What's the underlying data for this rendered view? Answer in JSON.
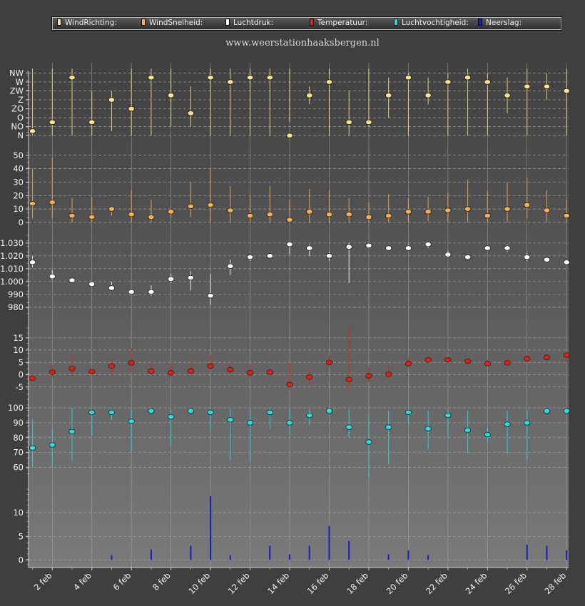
{
  "site_url": "www.weerstationhaaksbergen.nl",
  "colors": {
    "wind_direction": "#ffe38a",
    "wind_speed": "#f8b04c",
    "pressure": "#ffffff",
    "temperature": "#e81e10",
    "humidity": "#26e0e0",
    "precipitation": "#1a1ad0",
    "grid": "#a8a8a8"
  },
  "legend": [
    {
      "label": "WindRichting:",
      "color": "#ffe38a"
    },
    {
      "label": "WindSnelheid:",
      "color": "#f8b04c"
    },
    {
      "label": "Luchtdruk:",
      "color": "#ffffff"
    },
    {
      "label": "Temperatuur:",
      "color": "#e81e10"
    },
    {
      "label": "Luchtvochtigheid:",
      "color": "#26e0e0"
    },
    {
      "label": "Neerslag:",
      "color": "#1a1ad0"
    }
  ],
  "chart_data": [
    {
      "type": "scatter",
      "series_name": "WindRichting:",
      "x": [
        1,
        2,
        3,
        4,
        5,
        6,
        7,
        8,
        9,
        10,
        11,
        12,
        13,
        14,
        15,
        16,
        17,
        18,
        19,
        20,
        21,
        22,
        23,
        24,
        25,
        26,
        27,
        28
      ],
      "ticks": [
        "N",
        "NO",
        "O",
        "ZO",
        "Z",
        "ZW",
        "W",
        "NW"
      ],
      "ylim": [
        -0.15,
        7.2
      ],
      "values": [
        0.5,
        1.5,
        6.5,
        1.5,
        4,
        3,
        6.5,
        4.5,
        2.5,
        6.5,
        6,
        6.5,
        6.5,
        0,
        4.5,
        6,
        1.5,
        1.5,
        4.5,
        6.5,
        4.5,
        6,
        6.5,
        6,
        4.5,
        5.5,
        5.5,
        5
      ],
      "low": [
        0,
        0,
        0,
        0,
        0.5,
        0,
        0,
        1,
        1,
        0,
        0,
        0,
        0,
        1.5,
        3.5,
        0,
        0,
        1,
        2,
        0,
        3.5,
        0,
        0,
        0,
        2.5,
        0,
        4,
        0
      ],
      "high": [
        7.5,
        7.5,
        7.5,
        5,
        5,
        7.5,
        7.5,
        7.5,
        5.5,
        7.5,
        7.5,
        7.5,
        7.5,
        7.5,
        5.5,
        7.5,
        5,
        7.5,
        6.5,
        7,
        6.5,
        7,
        7.5,
        7,
        6.5,
        7.5,
        7,
        7.5
      ]
    },
    {
      "type": "scatter",
      "series_name": "WindSnelheid:",
      "x": [
        1,
        2,
        3,
        4,
        5,
        6,
        7,
        8,
        9,
        10,
        11,
        12,
        13,
        14,
        15,
        16,
        17,
        18,
        19,
        20,
        21,
        22,
        23,
        24,
        25,
        26,
        27,
        28
      ],
      "ticks": [
        0,
        10,
        20,
        30,
        40,
        50
      ],
      "ylim": [
        0,
        52
      ],
      "values": [
        14,
        15,
        5,
        4,
        10,
        6,
        4,
        8,
        12,
        13,
        9,
        5,
        6,
        2,
        8,
        6,
        6,
        4,
        5,
        8,
        8,
        9,
        10,
        5,
        10,
        13,
        9,
        5
      ],
      "low": [
        3,
        3,
        0,
        0,
        5,
        0,
        0,
        3,
        4,
        0,
        0,
        0,
        0,
        0,
        0,
        0,
        0,
        0,
        0,
        0,
        1,
        0,
        0,
        0,
        0,
        3,
        0,
        0
      ],
      "high": [
        40,
        48,
        18,
        19,
        12,
        24,
        17,
        10,
        30,
        40,
        27,
        20,
        27,
        17,
        25,
        24,
        18,
        15,
        21,
        18,
        19,
        22,
        32,
        23,
        30,
        33,
        24,
        17
      ]
    },
    {
      "type": "scatter",
      "series_name": "Luchtdruk:",
      "x": [
        1,
        2,
        3,
        4,
        5,
        6,
        7,
        8,
        9,
        10,
        11,
        12,
        13,
        14,
        15,
        16,
        17,
        18,
        19,
        20,
        21,
        22,
        23,
        24,
        25,
        26,
        27,
        28
      ],
      "ticks": [
        980,
        990,
        1000,
        1010,
        1020,
        1030
      ],
      "tick_labels": [
        "980",
        "990",
        "1.000",
        "1.010",
        "1.020",
        "1.030"
      ],
      "ylim": [
        975,
        1036
      ],
      "values": [
        1015,
        1004,
        1001,
        998,
        995,
        992,
        992,
        1002,
        1003,
        989,
        1012,
        1019,
        1020,
        1029,
        1026,
        1020,
        1027,
        1028,
        1026,
        1026,
        1029,
        1021,
        1019,
        1026,
        1026,
        1019,
        1017,
        1015
      ],
      "low": [
        1011,
        1001,
        1000,
        997,
        993,
        991,
        989,
        999,
        993,
        982,
        1005,
        1016,
        1019,
        1021,
        1020,
        1016,
        999,
        1026,
        1025,
        1025,
        1026,
        1020,
        1018,
        1024,
        1023,
        1016,
        1016,
        1013
      ],
      "high": [
        1020,
        1009,
        1002,
        999,
        1000,
        994,
        997,
        1006,
        1008,
        1006,
        1017,
        1021,
        1021,
        1031,
        1029,
        1023,
        1030,
        1030,
        1027,
        1029,
        1031,
        1024,
        1021,
        1028,
        1029,
        1022,
        1018,
        1017
      ]
    },
    {
      "type": "scatter",
      "series_name": "Temperatuur:",
      "x": [
        1,
        2,
        3,
        4,
        5,
        6,
        7,
        8,
        9,
        10,
        11,
        12,
        13,
        14,
        15,
        16,
        17,
        18,
        19,
        20,
        21,
        22,
        23,
        24,
        25,
        26,
        27,
        28
      ],
      "ticks": [
        -5,
        0,
        5,
        10,
        15
      ],
      "ylim": [
        -10,
        19
      ],
      "values": [
        -1.5,
        1,
        2.5,
        1.2,
        3.5,
        4.8,
        1.5,
        0.8,
        1.5,
        3.5,
        2,
        0.8,
        1,
        -4,
        -1,
        5,
        -2,
        -0.5,
        0.2,
        4.5,
        6,
        6,
        5.5,
        4.5,
        4.8,
        6.5,
        7,
        8
      ],
      "low": [
        -2,
        -1,
        -0.5,
        0,
        0,
        1,
        0,
        -1,
        0,
        1.5,
        0,
        -1,
        0,
        -6,
        -4,
        3.5,
        -6,
        -3,
        -2,
        3,
        5,
        5,
        5,
        4,
        4,
        5,
        6.5,
        5
      ],
      "high": [
        0,
        4,
        8,
        2,
        7,
        11,
        5,
        5,
        5,
        8,
        5,
        4,
        2,
        5,
        3,
        8,
        19,
        3,
        4,
        7,
        7,
        7,
        6.5,
        6,
        7,
        8,
        8,
        9
      ]
    },
    {
      "type": "scatter",
      "series_name": "Luchtvochtigheid:",
      "x": [
        1,
        2,
        3,
        4,
        5,
        6,
        7,
        8,
        9,
        10,
        11,
        12,
        13,
        14,
        15,
        16,
        17,
        18,
        19,
        20,
        21,
        22,
        23,
        24,
        25,
        26,
        27,
        28
      ],
      "ticks": [
        60,
        70,
        80,
        90,
        100
      ],
      "ylim": [
        52,
        102
      ],
      "values": [
        73,
        75,
        84,
        97,
        97,
        91,
        98,
        94,
        98,
        97,
        92,
        90,
        97,
        90,
        95,
        98,
        87,
        77,
        87,
        97,
        86,
        95,
        85,
        82,
        89,
        90,
        98,
        98
      ],
      "low": [
        60,
        60,
        64,
        81,
        92,
        70,
        96,
        74,
        96,
        85,
        65,
        64,
        86,
        82,
        88,
        96,
        80,
        53,
        62,
        89,
        72,
        80,
        69,
        77,
        69,
        65,
        96,
        96
      ],
      "high": [
        92,
        86,
        100,
        99,
        99,
        99,
        99,
        99,
        99,
        99,
        99,
        99,
        99,
        99,
        99,
        99,
        99,
        95,
        98,
        99,
        98,
        99,
        98,
        87,
        98,
        99,
        99,
        99
      ]
    },
    {
      "type": "bar",
      "series_name": "Neerslag:",
      "x": [
        1,
        2,
        3,
        4,
        5,
        6,
        7,
        8,
        9,
        10,
        11,
        12,
        13,
        14,
        15,
        16,
        17,
        18,
        19,
        20,
        21,
        22,
        23,
        24,
        25,
        26,
        27,
        28
      ],
      "ticks": [
        0,
        5,
        10
      ],
      "ylim": [
        -1,
        15
      ],
      "values": [
        0,
        0,
        0,
        0,
        1,
        0,
        2.2,
        0,
        3,
        13.5,
        1,
        0,
        3,
        1.2,
        3,
        7.2,
        4,
        0,
        1.2,
        2,
        1,
        0,
        0,
        0,
        0,
        3.2,
        3,
        2
      ]
    }
  ],
  "x_axis": {
    "labels": [
      "2 feb",
      "4 feb",
      "6 feb",
      "8 feb",
      "10 feb",
      "12 feb",
      "14 feb",
      "16 feb",
      "18 feb",
      "20 feb",
      "22 feb",
      "24 feb",
      "26 feb",
      "28 feb"
    ],
    "label_days": [
      2,
      4,
      6,
      8,
      10,
      12,
      14,
      16,
      18,
      20,
      22,
      24,
      26,
      28
    ],
    "xlim": [
      0.8,
      28.1
    ]
  }
}
